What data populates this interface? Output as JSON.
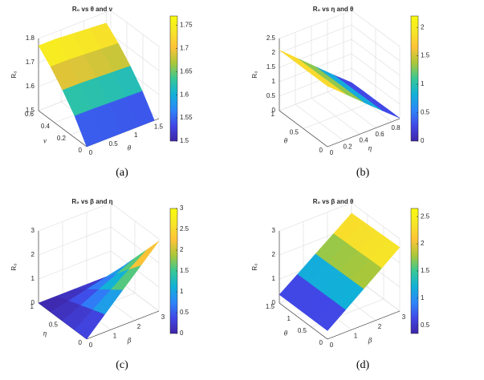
{
  "chart_data": [
    {
      "type": "surface",
      "title": "R₀ vs θ and ν",
      "caption": "(a)",
      "xlabel": "θ",
      "ylabel": "ν",
      "zlabel": "R₀",
      "x": [
        0,
        0.375,
        0.75,
        1.125,
        1.5
      ],
      "y": [
        0,
        0.15,
        0.3,
        0.45,
        0.6
      ],
      "z": [
        [
          1.5,
          1.5,
          1.5,
          1.5,
          1.5
        ],
        [
          1.59,
          1.59,
          1.588,
          1.586,
          1.584
        ],
        [
          1.66,
          1.66,
          1.657,
          1.654,
          1.651
        ],
        [
          1.72,
          1.72,
          1.716,
          1.712,
          1.708
        ],
        [
          1.77,
          1.77,
          1.765,
          1.76,
          1.755
        ]
      ],
      "xlim": [
        0,
        1.6
      ],
      "ylim": [
        0,
        0.6
      ],
      "zlim": [
        1.5,
        1.8
      ],
      "xticks": [
        0,
        0.5,
        1,
        1.5
      ],
      "yticks": [
        0,
        0.2,
        0.4,
        0.6
      ],
      "zticks": [
        1.5,
        1.6,
        1.7,
        1.8
      ],
      "clim": [
        1.5,
        1.77
      ],
      "cticks": [
        1.5,
        1.55,
        1.6,
        1.65,
        1.7,
        1.75
      ],
      "colormap": [
        "#3e26a8",
        "#4148e7",
        "#2c87f9",
        "#11b1d8",
        "#37c895",
        "#abc739",
        "#fec338",
        "#f6e528",
        "#f9fb0e"
      ],
      "grid": true
    },
    {
      "type": "surface",
      "title": "R₀ vs η and θ",
      "caption": "(b)",
      "xlabel": "η",
      "ylabel": "θ",
      "zlabel": "R₀",
      "x": [
        0,
        0.225,
        0.45,
        0.675,
        0.9
      ],
      "y": [
        0,
        0.25,
        0.5,
        0.75,
        1
      ],
      "z": [
        [
          2.1,
          1.58,
          1.05,
          0.53,
          0.02
        ],
        [
          2.1,
          1.58,
          1.05,
          0.53,
          0.02
        ],
        [
          2.1,
          1.57,
          1.05,
          0.52,
          0.01
        ],
        [
          2.1,
          1.57,
          1.04,
          0.52,
          0.01
        ],
        [
          2.1,
          1.57,
          1.04,
          0.51,
          0
        ]
      ],
      "xlim": [
        0,
        0.9
      ],
      "ylim": [
        0,
        1
      ],
      "zlim": [
        0,
        2.5
      ],
      "xticks": [
        0,
        0.2,
        0.4,
        0.6,
        0.8
      ],
      "yticks": [
        0,
        0.5,
        1
      ],
      "zticks": [
        0,
        0.5,
        1,
        1.5,
        2,
        2.5
      ],
      "clim": [
        0,
        2.2
      ],
      "cticks": [
        0,
        0.5,
        1,
        1.5,
        2
      ],
      "colormap": [
        "#3e26a8",
        "#4148e7",
        "#2c87f9",
        "#11b1d8",
        "#37c895",
        "#abc739",
        "#fec338",
        "#f6e528",
        "#f9fb0e"
      ],
      "grid": true
    },
    {
      "type": "surface",
      "title": "R₀ vs β and η",
      "caption": "(c)",
      "xlabel": "β",
      "ylabel": "η",
      "zlabel": "R₀",
      "x": [
        0,
        0.75,
        1.5,
        2.25,
        3
      ],
      "y": [
        0,
        0.25,
        0.5,
        0.75,
        1
      ],
      "z": [
        [
          0,
          0.73,
          1.46,
          2.18,
          2.91
        ],
        [
          0,
          0.55,
          1.09,
          1.64,
          2.18
        ],
        [
          0,
          0.36,
          0.73,
          1.09,
          1.46
        ],
        [
          0,
          0.18,
          0.36,
          0.55,
          0.73
        ],
        [
          0,
          0,
          0,
          0,
          0
        ]
      ],
      "xlim": [
        0,
        3
      ],
      "ylim": [
        0,
        1
      ],
      "zlim": [
        0,
        3
      ],
      "xticks": [
        0,
        1,
        2,
        3
      ],
      "yticks": [
        0,
        0.5,
        1
      ],
      "zticks": [
        0,
        1,
        2,
        3
      ],
      "clim": [
        0,
        3
      ],
      "cticks": [
        0,
        0.5,
        1,
        1.5,
        2,
        2.5,
        3
      ],
      "colormap": [
        "#3e26a8",
        "#4148e7",
        "#2c87f9",
        "#11b1d8",
        "#37c895",
        "#abc739",
        "#fec338",
        "#f6e528",
        "#f9fb0e"
      ],
      "grid": true
    },
    {
      "type": "surface",
      "title": "R₀ vs β and θ",
      "caption": "(d)",
      "xlabel": "β",
      "ylabel": "θ",
      "zlabel": "R₀",
      "x": [
        0,
        0.75,
        1.5,
        2.25,
        3
      ],
      "y": [
        0,
        0.375,
        0.75,
        1.125,
        1.5
      ],
      "z": [
        [
          0.35,
          0.92,
          1.5,
          2.07,
          2.65
        ],
        [
          0.35,
          0.92,
          1.49,
          2.06,
          2.63
        ],
        [
          0.35,
          0.91,
          1.48,
          2.04,
          2.61
        ],
        [
          0.35,
          0.91,
          1.47,
          2.03,
          2.59
        ],
        [
          0.35,
          0.9,
          1.46,
          2.01,
          2.57
        ]
      ],
      "xlim": [
        0,
        3
      ],
      "ylim": [
        0,
        1.5
      ],
      "zlim": [
        0,
        3
      ],
      "xticks": [
        0,
        1,
        2,
        3
      ],
      "yticks": [
        0,
        0.5,
        1,
        1.5
      ],
      "zticks": [
        0,
        1,
        2,
        3
      ],
      "clim": [
        0.35,
        2.65
      ],
      "cticks": [
        0.5,
        1,
        1.5,
        2,
        2.5
      ],
      "colormap": [
        "#3e26a8",
        "#4148e7",
        "#2c87f9",
        "#11b1d8",
        "#37c895",
        "#abc739",
        "#fec338",
        "#f6e528",
        "#f9fb0e"
      ],
      "grid": true
    }
  ]
}
